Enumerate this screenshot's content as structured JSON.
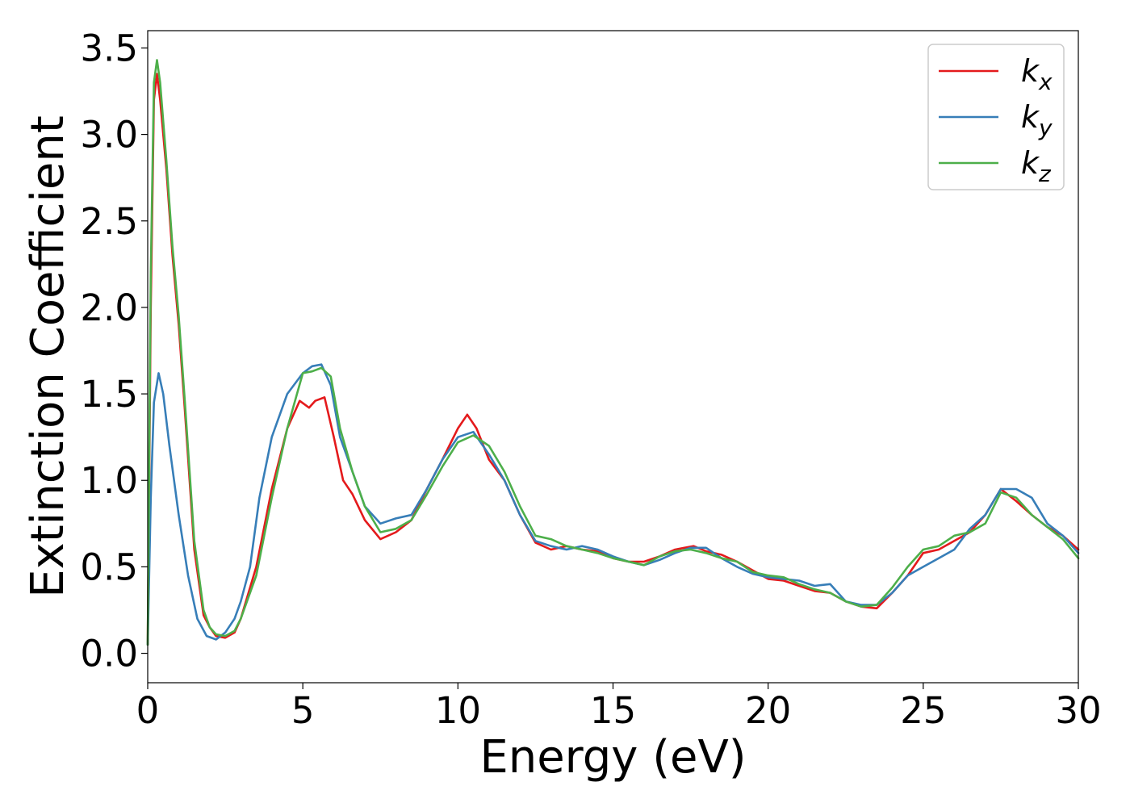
{
  "chart_data": {
    "type": "line",
    "xlabel": "Energy (eV)",
    "ylabel": "Extinction Coefficient",
    "xlim": [
      0,
      30
    ],
    "ylim": [
      -0.17,
      3.6
    ],
    "x_ticks": [
      "0",
      "5",
      "10",
      "15",
      "20",
      "25",
      "30"
    ],
    "x_tick_values": [
      0,
      5,
      10,
      15,
      20,
      25,
      30
    ],
    "y_ticks": [
      "0.0",
      "0.5",
      "1.0",
      "1.5",
      "2.0",
      "2.5",
      "3.0",
      "3.5"
    ],
    "y_tick_values": [
      0,
      0.5,
      1.0,
      1.5,
      2.0,
      2.5,
      3.0,
      3.5
    ],
    "grid": false,
    "legend_position": "top-right",
    "series": [
      {
        "name": "kx",
        "label_main": "k",
        "label_sub": "x",
        "color": "#e41a1c",
        "x": [
          0,
          0.1,
          0.2,
          0.3,
          0.4,
          0.6,
          0.8,
          1.0,
          1.2,
          1.5,
          1.8,
          2.0,
          2.2,
          2.5,
          2.8,
          3.0,
          3.5,
          4.0,
          4.5,
          4.9,
          5.2,
          5.4,
          5.7,
          6.0,
          6.3,
          6.6,
          7.0,
          7.5,
          8.0,
          8.5,
          9.0,
          9.5,
          10.0,
          10.3,
          10.6,
          11.0,
          11.5,
          12.0,
          12.5,
          13.0,
          13.5,
          14.0,
          14.5,
          15.0,
          15.5,
          16.0,
          16.5,
          17.0,
          17.3,
          17.6,
          18.0,
          18.5,
          19.0,
          19.5,
          20.0,
          20.5,
          21.0,
          21.5,
          22.0,
          22.5,
          23.0,
          23.5,
          24.0,
          24.5,
          25.0,
          25.5,
          26.0,
          26.5,
          27.0,
          27.5,
          28.0,
          28.5,
          29.0,
          29.5,
          30.0
        ],
        "values": [
          0.05,
          2.0,
          3.2,
          3.35,
          3.2,
          2.8,
          2.3,
          1.9,
          1.4,
          0.6,
          0.22,
          0.15,
          0.1,
          0.09,
          0.12,
          0.2,
          0.5,
          0.95,
          1.3,
          1.46,
          1.42,
          1.46,
          1.48,
          1.25,
          1.0,
          0.92,
          0.77,
          0.66,
          0.7,
          0.77,
          0.95,
          1.12,
          1.3,
          1.38,
          1.3,
          1.12,
          1.0,
          0.8,
          0.64,
          0.6,
          0.62,
          0.6,
          0.59,
          0.55,
          0.53,
          0.53,
          0.56,
          0.6,
          0.61,
          0.62,
          0.59,
          0.57,
          0.53,
          0.48,
          0.43,
          0.42,
          0.39,
          0.36,
          0.35,
          0.3,
          0.27,
          0.26,
          0.35,
          0.45,
          0.58,
          0.6,
          0.65,
          0.7,
          0.8,
          0.95,
          0.88,
          0.8,
          0.73,
          0.68,
          0.6
        ]
      },
      {
        "name": "ky",
        "label_main": "k",
        "label_sub": "y",
        "color": "#377eb8",
        "x": [
          0,
          0.1,
          0.2,
          0.35,
          0.5,
          0.7,
          1.0,
          1.3,
          1.6,
          1.9,
          2.2,
          2.5,
          2.8,
          3.0,
          3.3,
          3.6,
          4.0,
          4.5,
          5.0,
          5.3,
          5.6,
          5.9,
          6.2,
          6.6,
          7.0,
          7.5,
          8.0,
          8.5,
          9.0,
          9.5,
          10.0,
          10.5,
          11.0,
          11.5,
          12.0,
          12.5,
          13.0,
          13.5,
          14.0,
          14.5,
          15.0,
          15.5,
          16.0,
          16.5,
          17.0,
          17.5,
          18.0,
          18.5,
          19.0,
          19.5,
          20.0,
          20.5,
          21.0,
          21.5,
          22.0,
          22.5,
          23.0,
          23.5,
          24.0,
          24.5,
          25.0,
          25.5,
          26.0,
          26.5,
          27.0,
          27.5,
          28.0,
          28.5,
          29.0,
          29.5,
          30.0
        ],
        "values": [
          0.05,
          0.9,
          1.45,
          1.62,
          1.5,
          1.2,
          0.8,
          0.45,
          0.2,
          0.1,
          0.08,
          0.12,
          0.2,
          0.3,
          0.5,
          0.9,
          1.25,
          1.5,
          1.62,
          1.66,
          1.67,
          1.55,
          1.25,
          1.05,
          0.85,
          0.75,
          0.78,
          0.8,
          0.95,
          1.12,
          1.25,
          1.28,
          1.15,
          1.0,
          0.8,
          0.65,
          0.62,
          0.6,
          0.62,
          0.6,
          0.56,
          0.53,
          0.51,
          0.54,
          0.58,
          0.61,
          0.61,
          0.55,
          0.5,
          0.46,
          0.44,
          0.43,
          0.42,
          0.39,
          0.4,
          0.3,
          0.28,
          0.28,
          0.35,
          0.45,
          0.5,
          0.55,
          0.6,
          0.72,
          0.8,
          0.95,
          0.95,
          0.9,
          0.75,
          0.68,
          0.58
        ]
      },
      {
        "name": "kz",
        "label_main": "k",
        "label_sub": "z",
        "color": "#4daf4a",
        "x": [
          0,
          0.1,
          0.2,
          0.3,
          0.4,
          0.6,
          0.8,
          1.0,
          1.2,
          1.5,
          1.8,
          2.0,
          2.2,
          2.5,
          2.8,
          3.0,
          3.5,
          4.0,
          4.5,
          5.0,
          5.3,
          5.6,
          5.9,
          6.2,
          6.6,
          7.0,
          7.5,
          8.0,
          8.5,
          9.0,
          9.5,
          10.0,
          10.5,
          11.0,
          11.5,
          12.0,
          12.5,
          13.0,
          13.5,
          14.0,
          14.5,
          15.0,
          15.5,
          16.0,
          16.5,
          17.0,
          17.5,
          18.0,
          18.5,
          19.0,
          19.5,
          20.0,
          20.5,
          21.0,
          21.5,
          22.0,
          22.5,
          23.0,
          23.5,
          24.0,
          24.5,
          25.0,
          25.5,
          26.0,
          26.5,
          27.0,
          27.5,
          28.0,
          28.5,
          29.0,
          29.5,
          30.0
        ],
        "values": [
          0.05,
          2.2,
          3.3,
          3.43,
          3.3,
          2.85,
          2.35,
          1.95,
          1.45,
          0.65,
          0.25,
          0.15,
          0.11,
          0.1,
          0.13,
          0.2,
          0.45,
          0.9,
          1.3,
          1.62,
          1.63,
          1.65,
          1.6,
          1.3,
          1.05,
          0.85,
          0.7,
          0.72,
          0.77,
          0.92,
          1.08,
          1.22,
          1.26,
          1.2,
          1.05,
          0.85,
          0.68,
          0.66,
          0.62,
          0.6,
          0.58,
          0.55,
          0.53,
          0.51,
          0.56,
          0.59,
          0.6,
          0.58,
          0.55,
          0.53,
          0.47,
          0.45,
          0.44,
          0.4,
          0.37,
          0.35,
          0.3,
          0.27,
          0.28,
          0.38,
          0.5,
          0.6,
          0.62,
          0.68,
          0.7,
          0.75,
          0.93,
          0.9,
          0.8,
          0.73,
          0.66,
          0.55
        ]
      }
    ]
  }
}
